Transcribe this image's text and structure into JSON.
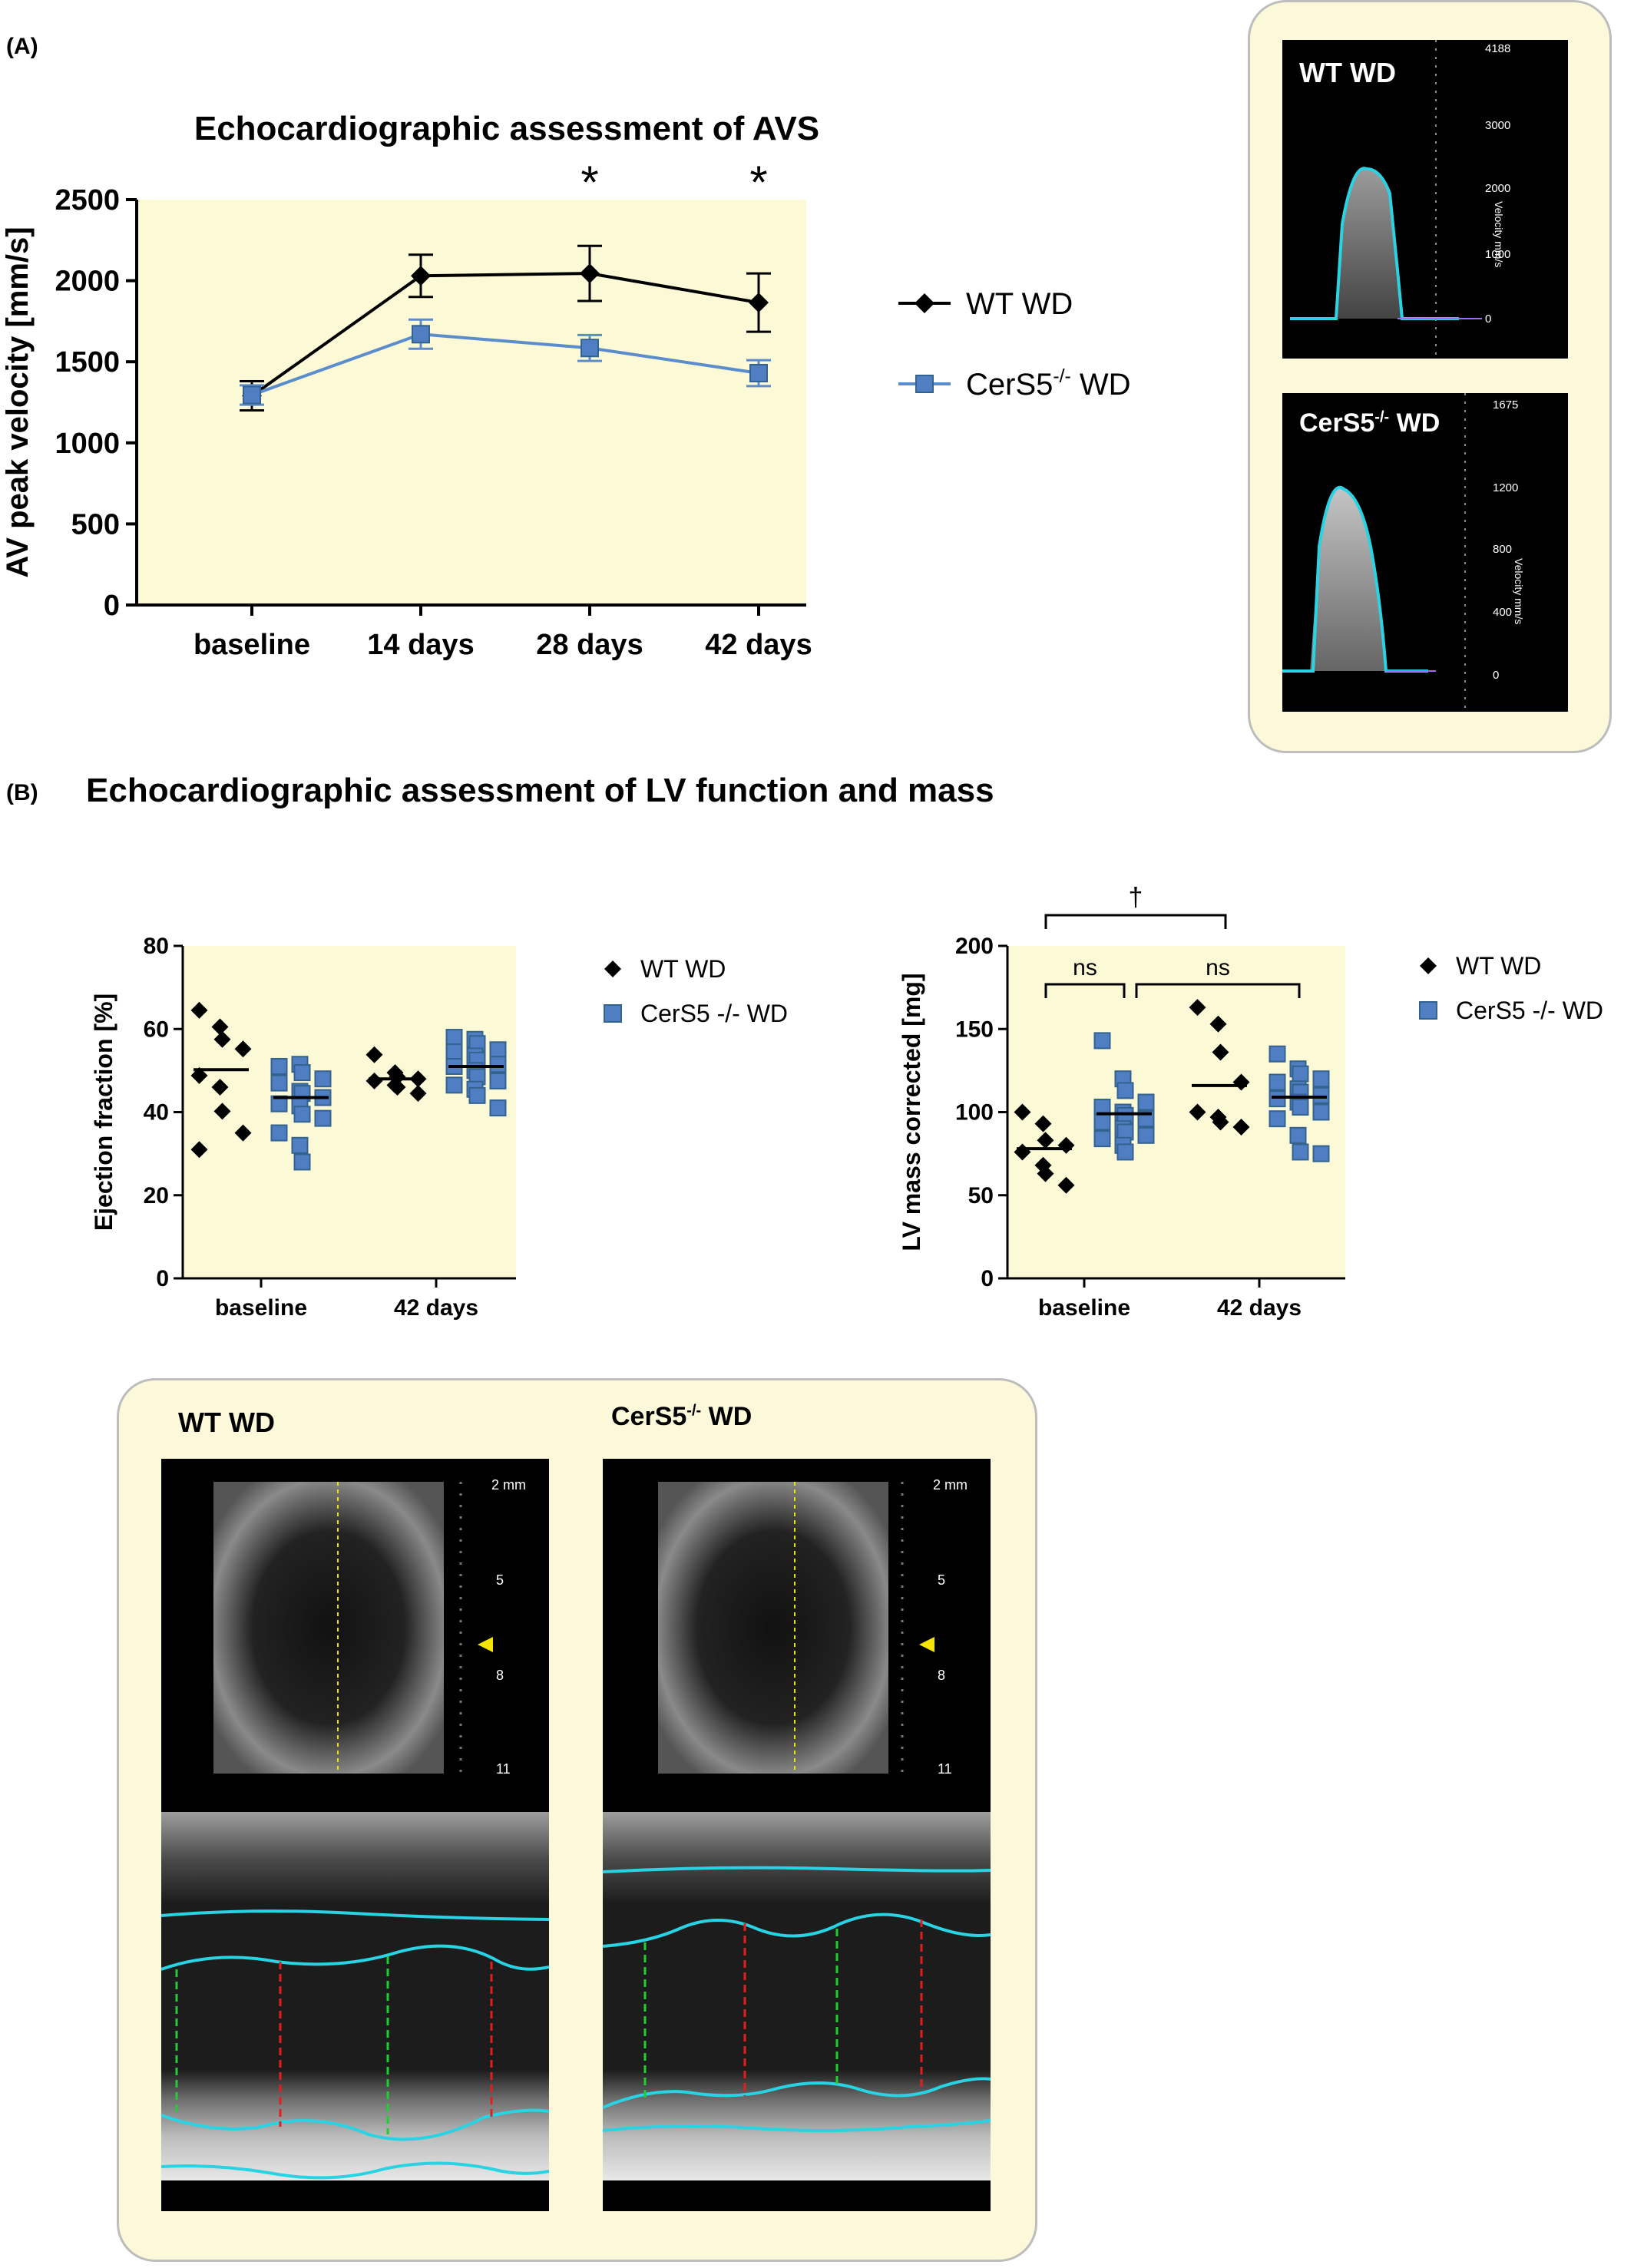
{
  "panel_a": {
    "label": "(A)",
    "doppler": {
      "wt_label": "WT WD",
      "wt_scale": [
        "4188",
        "3000",
        "2000",
        "1000",
        "0"
      ],
      "ko_label_base": "CerS5",
      "ko_label_sup": "-/-",
      "ko_label_tail": " WD",
      "ko_scale": [
        "1675",
        "1200",
        "800",
        "400",
        "0"
      ],
      "axis_caption": "Velocity mm/s"
    }
  },
  "panel_b": {
    "label": "(B)",
    "title": "Echocardiographic assessment of LV function and mass",
    "mmode": {
      "wt_label": "WT WD",
      "ko_label_base": "CerS5",
      "ko_label_sup": "-/-",
      "ko_label_tail": " WD",
      "depth_ticks": [
        "2 mm",
        "5",
        "8",
        "11"
      ]
    }
  },
  "colors": {
    "plot_bg": "#fcf9d6",
    "wt": "#000000",
    "ko": "#5b8ccc",
    "ko_marker": "#4f7fc2",
    "trace": "#29d3e3"
  },
  "chart_data": [
    {
      "type": "line",
      "title": "Echocardiographic assessment of AVS",
      "xlabel": "",
      "ylabel": "AV peak velocity [mm/s]",
      "categories": [
        "baseline",
        "14 days",
        "28 days",
        "42  days"
      ],
      "ylim": [
        0,
        2500
      ],
      "yticks": [
        0,
        500,
        1000,
        1500,
        2000,
        2500
      ],
      "legend_position": "right",
      "significance": [
        "",
        "",
        "*",
        "*"
      ],
      "series": [
        {
          "name_base": "WT WD",
          "name_sup": "",
          "name_tail": "",
          "marker": "diamond",
          "values": [
            1290,
            2030,
            2045,
            1865
          ],
          "errors": [
            90,
            130,
            170,
            180
          ]
        },
        {
          "name_base": "CerS5",
          "name_sup": "-/-",
          "name_tail": " WD",
          "marker": "square",
          "values": [
            1295,
            1670,
            1585,
            1430
          ],
          "errors": [
            60,
            90,
            80,
            80
          ]
        }
      ]
    },
    {
      "type": "scatter",
      "ylabel": "Ejection fraction [%]",
      "categories": [
        "baseline",
        "42 days"
      ],
      "ylim": [
        0,
        80
      ],
      "yticks": [
        0,
        20,
        40,
        60,
        80
      ],
      "legend_position": "right",
      "series": [
        {
          "name": "WT WD",
          "marker": "diamond",
          "groups": [
            {
              "mean": 50.2,
              "points": [
                64.5,
                60.5,
                57.5,
                55.2,
                48.8,
                46.0,
                40.2,
                35.0,
                31.0
              ]
            },
            {
              "mean": 48.0,
              "points": [
                53.8,
                49.5,
                48.5,
                48.0,
                47.5,
                46.5,
                46.0,
                44.5
              ]
            }
          ]
        },
        {
          "name": "CerS5 -/- WD",
          "marker": "square",
          "groups": [
            {
              "mean": 43.5,
              "points": [
                51.0,
                51.5,
                49.5,
                48.0,
                47.0,
                45.0,
                44.5,
                43.5,
                42.0,
                41.5,
                39.5,
                38.5,
                35.0,
                32.0,
                28.0
              ]
            },
            {
              "mean": 51.0,
              "points": [
                58.0,
                57.5,
                56.5,
                55.0,
                54.5,
                53.5,
                52.5,
                51.5,
                51.0,
                50.0,
                48.5,
                47.5,
                46.5,
                45.5,
                44.0,
                41.0
              ]
            }
          ]
        }
      ]
    },
    {
      "type": "scatter",
      "ylabel": "LV mass corrected [mg]",
      "categories": [
        "baseline",
        "42 days"
      ],
      "ylim": [
        0,
        200
      ],
      "yticks": [
        0,
        50,
        100,
        150,
        200
      ],
      "legend_position": "right",
      "annotations": {
        "dagger": "†",
        "ns_left": "ns",
        "ns_right": "ns"
      },
      "series": [
        {
          "name": "WT WD",
          "marker": "diamond",
          "groups": [
            {
              "mean": 78.0,
              "points": [
                100.0,
                93.0,
                83.0,
                80.0,
                76.0,
                68.0,
                63.0,
                56.0
              ]
            },
            {
              "mean": 116.0,
              "points": [
                163.0,
                153.0,
                136.0,
                118.0,
                100.0,
                97.0,
                94.0,
                91.0
              ]
            }
          ]
        },
        {
          "name": "CerS5 -/- WD",
          "marker": "square",
          "groups": [
            {
              "mean": 99.0,
              "points": [
                143.0,
                120.0,
                113.0,
                106.0,
                103.0,
                100.0,
                98.0,
                96.0,
                94.0,
                90.0,
                88.0,
                86.0,
                84.0,
                80.0,
                76.0
              ]
            },
            {
              "mean": 109.0,
              "points": [
                135.0,
                126.0,
                123.0,
                120.0,
                118.0,
                114.0,
                112.0,
                110.0,
                108.0,
                106.0,
                103.0,
                100.0,
                96.0,
                86.0,
                76.0,
                75.0
              ]
            }
          ]
        }
      ]
    }
  ]
}
